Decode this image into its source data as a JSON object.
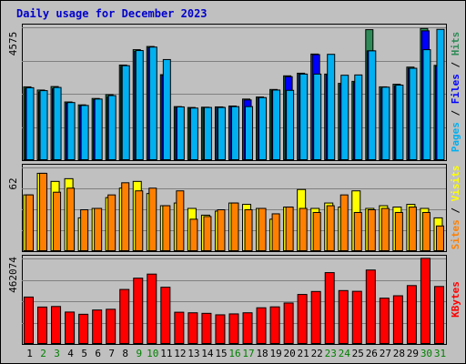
{
  "chart_data": {
    "type": "bar",
    "title": "Daily usage for December 2023",
    "categories": [
      "1",
      "2",
      "3",
      "4",
      "5",
      "6",
      "7",
      "8",
      "9",
      "10",
      "11",
      "12",
      "13",
      "14",
      "15",
      "16",
      "17",
      "18",
      "19",
      "20",
      "21",
      "22",
      "23",
      "24",
      "25",
      "26",
      "27",
      "28",
      "29",
      "30",
      "31"
    ],
    "weekend_days": [
      "2",
      "3",
      "9",
      "10",
      "16",
      "17",
      "23",
      "24",
      "30",
      "31"
    ],
    "colors": {
      "pages": "#2e8b57",
      "files": "#0000ff",
      "hits": "#00b0f0",
      "sites": "#ff8000",
      "visits": "#ffff00",
      "kbytes": "#ff0000",
      "weekday_label": "#000000",
      "weekend_label": "#008000"
    },
    "panels": [
      {
        "name": "hits_files_pages",
        "ymax_label": "4575",
        "ymax": 4575,
        "labels": [
          "Pages",
          "Files",
          "Hits"
        ],
        "series": [
          {
            "name": "Pages",
            "values": [
              2540,
              2430,
              2550,
              2020,
              1920,
              2140,
              2270,
              3290,
              3820,
              3930,
              2960,
              1860,
              1830,
              1840,
              1850,
              1880,
              2120,
              2190,
              2450,
              2920,
              3010,
              3670,
              2980,
              2660,
              2730,
              4510,
              2540,
              2630,
              3220,
              4550,
              3280
            ]
          },
          {
            "name": "Files",
            "values": [
              2490,
              2370,
              2480,
              1980,
              1880,
              2100,
              2200,
              3250,
              3760,
              3890,
              2930,
              1830,
              1800,
              1830,
              1840,
              1850,
              2090,
              2160,
              2410,
              2890,
              2980,
              3650,
              2950,
              2620,
              2690,
              3780,
              2490,
              2580,
              3180,
              4470,
              3250
            ]
          },
          {
            "name": "Hits",
            "values": [
              2510,
              2410,
              2520,
              2000,
              1900,
              2120,
              2240,
              3270,
              3790,
              3910,
              3480,
              1850,
              1810,
              1830,
              1830,
              1860,
              1860,
              2170,
              2430,
              2420,
              2980,
              2980,
              3660,
              2940,
              2950,
              3780,
              2530,
              2600,
              3180,
              3820,
              4520
            ]
          }
        ]
      },
      {
        "name": "visits_sites",
        "ymax_label": "62",
        "ymax": 62,
        "labels": [
          "Sites",
          "Visits"
        ],
        "series": [
          {
            "name": "Visits",
            "values": [
              42,
              58,
              52,
              54,
              25,
              32,
              40,
              47,
              52,
              43,
              34,
              36,
              32,
              27,
              30,
              36,
              35,
              32,
              24,
              33,
              46,
              32,
              36,
              33,
              45,
              32,
              34,
              33,
              35,
              32,
              25
            ]
          },
          {
            "name": "Sites",
            "values": [
              42,
              58,
              44,
              47,
              31,
              32,
              42,
              51,
              45,
              47,
              34,
              45,
              24,
              26,
              31,
              36,
              31,
              32,
              28,
              33,
              32,
              29,
              34,
              42,
              29,
              31,
              32,
              29,
              33,
              29,
              19
            ]
          }
        ]
      },
      {
        "name": "kbytes",
        "ymax_label": "462074",
        "ymax": 462074,
        "labels": [
          "KBytes"
        ],
        "series": [
          {
            "name": "KBytes",
            "values": [
              256000,
              202000,
              205000,
              175000,
              163000,
              186000,
              190000,
              297000,
              358000,
              380000,
              309000,
              174000,
              171000,
              168000,
              160000,
              165000,
              171000,
              198000,
              203000,
              224000,
              270000,
              286000,
              388000,
              291000,
              287000,
              402000,
              250000,
              263000,
              318000,
              465000,
              313000
            ]
          }
        ]
      }
    ]
  }
}
